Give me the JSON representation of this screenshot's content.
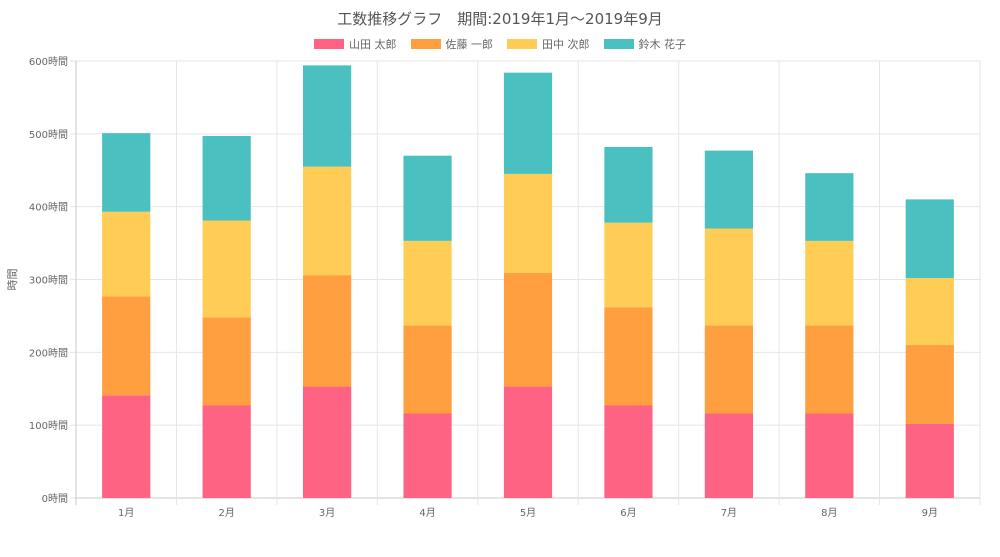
{
  "chart_data": {
    "type": "bar",
    "stacked": true,
    "title": "工数推移グラフ　期間:2019年1月〜2019年9月",
    "ylabel": "時間",
    "y_tick_suffix": "時間",
    "ylim": [
      0,
      600
    ],
    "y_ticks": [
      0,
      100,
      200,
      300,
      400,
      500,
      600
    ],
    "grid": true,
    "legend_position": "top",
    "categories": [
      "1月",
      "2月",
      "3月",
      "4月",
      "5月",
      "6月",
      "7月",
      "8月",
      "9月"
    ],
    "series": [
      {
        "name": "山田 太郎",
        "color": "#ff6384",
        "values": [
          141,
          127,
          153,
          116,
          153,
          127,
          116,
          116,
          102
        ]
      },
      {
        "name": "佐藤 一郎",
        "color": "#ff9f40",
        "values": [
          136,
          121,
          153,
          121,
          156,
          135,
          121,
          121,
          108
        ]
      },
      {
        "name": "田中 次郎",
        "color": "#ffcd56",
        "values": [
          116,
          133,
          149,
          116,
          136,
          116,
          133,
          116,
          92
        ]
      },
      {
        "name": "鈴木 花子",
        "color": "#4bc0c0",
        "values": [
          108,
          116,
          139,
          117,
          139,
          104,
          107,
          93,
          108
        ]
      }
    ]
  }
}
